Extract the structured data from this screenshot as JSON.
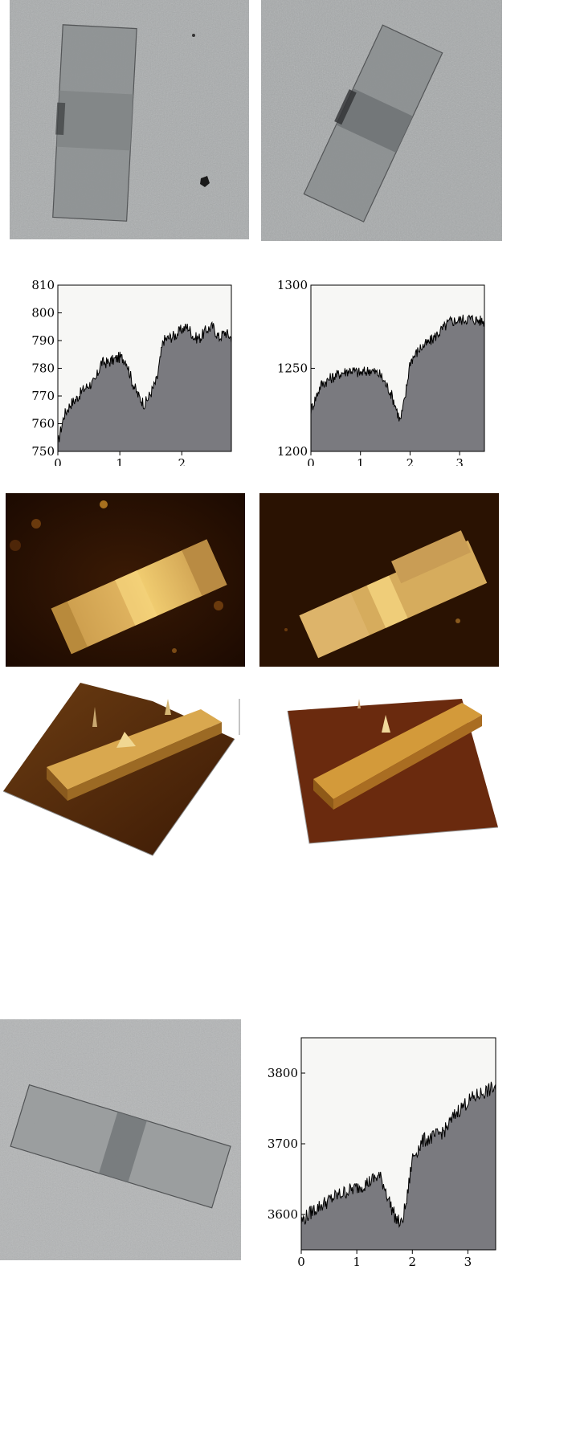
{
  "figure": {
    "panels": [
      {
        "id": "tem-1",
        "kind": "TEM micrograph",
        "description": "grey noisy background with tilted rectangular film"
      },
      {
        "id": "tem-2",
        "kind": "TEM micrograph",
        "description": "grey noisy background with tilted rectangular film, darker band across middle"
      },
      {
        "id": "afm-1",
        "kind": "AFM height image"
      },
      {
        "id": "afm-2",
        "kind": "AFM height image"
      },
      {
        "id": "afm3d-1",
        "kind": "3D AFM topography"
      },
      {
        "id": "afm3d-2",
        "kind": "3D AFM topography"
      },
      {
        "id": "tem-3",
        "kind": "TEM micrograph"
      }
    ],
    "colors": {
      "tem_bg": "#a9acad",
      "profile_fill": "#7a7a7f",
      "profile_line": "#000000",
      "plot_bg": "#f7f7f5",
      "afm_dark": "#2a1202",
      "afm_bright": "#f0c050"
    }
  },
  "chart_data": [
    {
      "type": "area",
      "title": "",
      "xlabel": "",
      "ylabel": "",
      "xlim": [
        0,
        2.8
      ],
      "ylim": [
        750,
        810
      ],
      "xticks": [
        "0",
        "1",
        "2"
      ],
      "yticks": [
        "750",
        "760",
        "770",
        "780",
        "790",
        "800",
        "810"
      ],
      "x": [
        0,
        0.1,
        0.2,
        0.3,
        0.4,
        0.5,
        0.6,
        0.7,
        0.8,
        0.9,
        1.0,
        1.1,
        1.2,
        1.3,
        1.4,
        1.5,
        1.6,
        1.7,
        1.8,
        1.9,
        2.0,
        2.1,
        2.2,
        2.3,
        2.4,
        2.5,
        2.6,
        2.7,
        2.8
      ],
      "values": [
        753,
        763,
        767,
        769,
        772,
        774,
        775,
        782,
        782,
        783,
        784,
        783,
        775,
        770,
        767,
        771,
        776,
        790,
        791,
        792,
        794,
        795,
        791,
        791,
        794,
        795,
        791,
        793,
        791
      ]
    },
    {
      "type": "area",
      "title": "",
      "xlabel": "",
      "ylabel": "",
      "xlim": [
        0,
        3.5
      ],
      "ylim": [
        1200,
        1300
      ],
      "xticks": [
        "0",
        "1",
        "2",
        "3"
      ],
      "yticks": [
        "1200",
        "1250",
        "1300"
      ],
      "x": [
        0,
        0.2,
        0.4,
        0.6,
        0.8,
        1.0,
        1.2,
        1.4,
        1.6,
        1.7,
        1.8,
        1.9,
        2.0,
        2.2,
        2.4,
        2.6,
        2.8,
        3.0,
        3.2,
        3.5
      ],
      "values": [
        1225,
        1240,
        1244,
        1247,
        1249,
        1247,
        1249,
        1246,
        1236,
        1228,
        1218,
        1232,
        1254,
        1262,
        1266,
        1272,
        1278,
        1279,
        1280,
        1278
      ]
    },
    {
      "type": "area",
      "title": "",
      "xlabel": "",
      "ylabel": "",
      "xlim": [
        0,
        3.5
      ],
      "ylim": [
        3550,
        3850
      ],
      "xticks": [
        "0",
        "1",
        "2",
        "3"
      ],
      "yticks": [
        "3600",
        "3700",
        "3800"
      ],
      "x": [
        0,
        0.2,
        0.4,
        0.6,
        0.8,
        1.0,
        1.2,
        1.4,
        1.5,
        1.6,
        1.7,
        1.8,
        1.9,
        2.0,
        2.2,
        2.4,
        2.6,
        2.8,
        3.0,
        3.2,
        3.5
      ],
      "values": [
        3590,
        3605,
        3615,
        3625,
        3632,
        3638,
        3645,
        3655,
        3640,
        3615,
        3595,
        3585,
        3620,
        3680,
        3705,
        3710,
        3720,
        3745,
        3760,
        3770,
        3780
      ]
    }
  ]
}
